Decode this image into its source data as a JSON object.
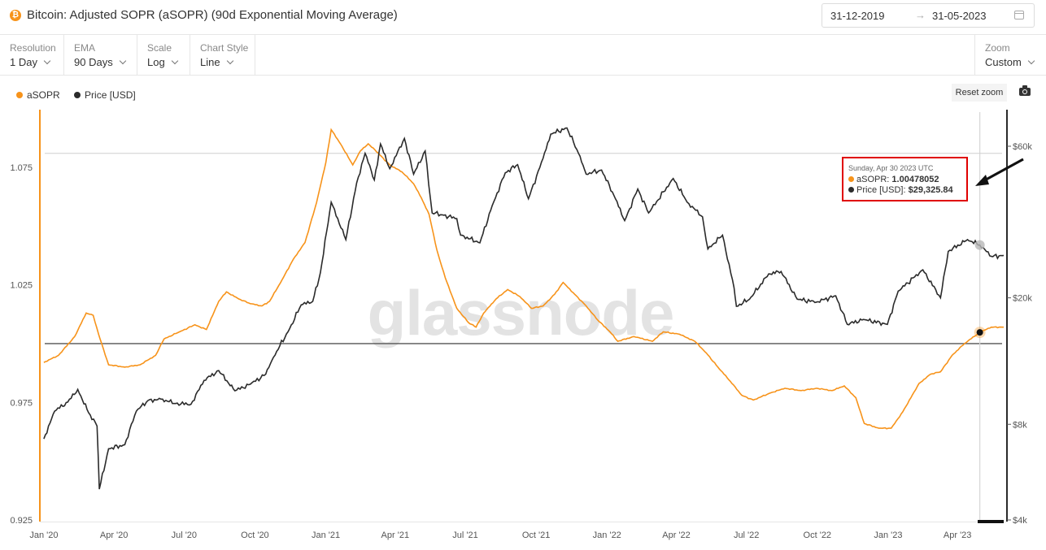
{
  "header": {
    "title": "Bitcoin: Adjusted SOPR (aSOPR) (90d Exponential Moving Average)",
    "coin_symbol": "₿",
    "date_from": "31-12-2019",
    "date_arrow": "→",
    "date_to": "31-05-2023"
  },
  "controls": [
    {
      "label": "Resolution",
      "value": "1 Day"
    },
    {
      "label": "EMA",
      "value": "90 Days"
    },
    {
      "label": "Scale",
      "value": "Log"
    },
    {
      "label": "Chart Style",
      "value": "Line"
    }
  ],
  "zoom": {
    "label": "Zoom",
    "value": "Custom"
  },
  "reset_zoom_label": "Reset zoom",
  "watermark": "glassnode",
  "tooltip": {
    "date": "Sunday, Apr 30 2023 UTC",
    "sopr_name": "aSOPR",
    "sopr_value": "1.00478052",
    "price_name": "Price [USD]",
    "price_value": "$29,325.84"
  },
  "colors": {
    "sopr": "#f7931a",
    "price": "#2b2b2b",
    "highlight": "#e00000"
  },
  "chart_data": {
    "type": "line",
    "title": "Bitcoin: Adjusted SOPR (aSOPR) (90d Exponential Moving Average)",
    "legend": [
      "aSOPR",
      "Price [USD]"
    ],
    "legend_position": "top-left",
    "x_range": [
      "2019-12-31",
      "2023-05-31"
    ],
    "x_ticks": [
      "Jan '20",
      "Apr '20",
      "Jul '20",
      "Oct '20",
      "Jan '21",
      "Apr '21",
      "Jul '21",
      "Oct '21",
      "Jan '22",
      "Apr '22",
      "Jul '22",
      "Oct '22",
      "Jan '23",
      "Apr '23"
    ],
    "y_left": {
      "scale": "linear",
      "range": [
        0.925,
        1.1
      ],
      "ticks": [
        "0.925",
        "0.975",
        "1.025",
        "1.075"
      ]
    },
    "y_right": {
      "scale": "log",
      "range": [
        4000,
        70000
      ],
      "ticks": [
        "$4k",
        "$8k",
        "$20k",
        "$60k"
      ]
    },
    "reference_line": 1.0,
    "grid": false,
    "series": [
      {
        "name": "aSOPR",
        "axis": "left",
        "points": [
          [
            "2020-01-01",
            0.992
          ],
          [
            "2020-01-20",
            0.995
          ],
          [
            "2020-02-10",
            1.003
          ],
          [
            "2020-02-25",
            1.013
          ],
          [
            "2020-03-05",
            1.012
          ],
          [
            "2020-03-12",
            1.004
          ],
          [
            "2020-03-25",
            0.991
          ],
          [
            "2020-04-15",
            0.99
          ],
          [
            "2020-05-05",
            0.991
          ],
          [
            "2020-05-25",
            0.995
          ],
          [
            "2020-06-05",
            1.002
          ],
          [
            "2020-06-25",
            1.005
          ],
          [
            "2020-07-15",
            1.008
          ],
          [
            "2020-07-30",
            1.006
          ],
          [
            "2020-08-15",
            1.018
          ],
          [
            "2020-08-25",
            1.022
          ],
          [
            "2020-09-10",
            1.019
          ],
          [
            "2020-09-25",
            1.017
          ],
          [
            "2020-10-10",
            1.016
          ],
          [
            "2020-10-20",
            1.018
          ],
          [
            "2020-11-05",
            1.027
          ],
          [
            "2020-11-20",
            1.036
          ],
          [
            "2020-12-05",
            1.043
          ],
          [
            "2020-12-20",
            1.06
          ],
          [
            "2021-01-01",
            1.077
          ],
          [
            "2021-01-08",
            1.091
          ],
          [
            "2021-01-20",
            1.085
          ],
          [
            "2021-02-05",
            1.076
          ],
          [
            "2021-02-15",
            1.082
          ],
          [
            "2021-02-25",
            1.085
          ],
          [
            "2021-03-10",
            1.081
          ],
          [
            "2021-03-25",
            1.076
          ],
          [
            "2021-04-10",
            1.073
          ],
          [
            "2021-04-25",
            1.068
          ],
          [
            "2021-05-05",
            1.062
          ],
          [
            "2021-05-15",
            1.055
          ],
          [
            "2021-05-25",
            1.04
          ],
          [
            "2021-06-05",
            1.028
          ],
          [
            "2021-06-20",
            1.015
          ],
          [
            "2021-07-05",
            1.009
          ],
          [
            "2021-07-15",
            1.007
          ],
          [
            "2021-07-25",
            1.013
          ],
          [
            "2021-08-10",
            1.019
          ],
          [
            "2021-08-25",
            1.023
          ],
          [
            "2021-09-10",
            1.02
          ],
          [
            "2021-09-25",
            1.015
          ],
          [
            "2021-10-10",
            1.016
          ],
          [
            "2021-10-25",
            1.021
          ],
          [
            "2021-11-05",
            1.026
          ],
          [
            "2021-11-20",
            1.021
          ],
          [
            "2021-12-05",
            1.016
          ],
          [
            "2021-12-20",
            1.01
          ],
          [
            "2022-01-05",
            1.005
          ],
          [
            "2022-01-15",
            1.001
          ],
          [
            "2022-02-05",
            1.003
          ],
          [
            "2022-03-01",
            1.001
          ],
          [
            "2022-03-15",
            1.005
          ],
          [
            "2022-04-05",
            1.004
          ],
          [
            "2022-04-25",
            1.001
          ],
          [
            "2022-05-10",
            0.996
          ],
          [
            "2022-05-25",
            0.99
          ],
          [
            "2022-06-10",
            0.984
          ],
          [
            "2022-06-25",
            0.978
          ],
          [
            "2022-07-10",
            0.976
          ],
          [
            "2022-08-01",
            0.979
          ],
          [
            "2022-08-20",
            0.981
          ],
          [
            "2022-09-10",
            0.98
          ],
          [
            "2022-09-30",
            0.981
          ],
          [
            "2022-10-20",
            0.98
          ],
          [
            "2022-11-05",
            0.982
          ],
          [
            "2022-11-20",
            0.977
          ],
          [
            "2022-12-01",
            0.966
          ],
          [
            "2022-12-20",
            0.964
          ],
          [
            "2023-01-05",
            0.964
          ],
          [
            "2023-01-20",
            0.971
          ],
          [
            "2023-02-10",
            0.983
          ],
          [
            "2023-02-25",
            0.987
          ],
          [
            "2023-03-10",
            0.988
          ],
          [
            "2023-03-25",
            0.995
          ],
          [
            "2023-04-10",
            1.0
          ],
          [
            "2023-04-30",
            1.0048
          ],
          [
            "2023-05-15",
            1.007
          ],
          [
            "2023-05-31",
            1.007
          ]
        ]
      },
      {
        "name": "Price [USD]",
        "axis": "right",
        "points": [
          [
            "2020-01-01",
            7200
          ],
          [
            "2020-01-15",
            8800
          ],
          [
            "2020-02-01",
            9400
          ],
          [
            "2020-02-14",
            10300
          ],
          [
            "2020-02-28",
            8700
          ],
          [
            "2020-03-10",
            7900
          ],
          [
            "2020-03-13",
            5000
          ],
          [
            "2020-03-25",
            6700
          ],
          [
            "2020-04-15",
            6900
          ],
          [
            "2020-04-30",
            8800
          ],
          [
            "2020-05-15",
            9500
          ],
          [
            "2020-06-01",
            9600
          ],
          [
            "2020-06-20",
            9300
          ],
          [
            "2020-07-10",
            9250
          ],
          [
            "2020-07-27",
            11000
          ],
          [
            "2020-08-15",
            11800
          ],
          [
            "2020-09-05",
            10200
          ],
          [
            "2020-09-25",
            10700
          ],
          [
            "2020-10-15",
            11500
          ],
          [
            "2020-10-25",
            13000
          ],
          [
            "2020-11-15",
            16000
          ],
          [
            "2020-11-30",
            19000
          ],
          [
            "2020-12-15",
            19500
          ],
          [
            "2020-12-25",
            24000
          ],
          [
            "2021-01-08",
            40000
          ],
          [
            "2021-01-27",
            30500
          ],
          [
            "2021-02-10",
            46000
          ],
          [
            "2021-02-21",
            57000
          ],
          [
            "2021-03-05",
            47000
          ],
          [
            "2021-03-13",
            61000
          ],
          [
            "2021-03-25",
            51000
          ],
          [
            "2021-04-13",
            63500
          ],
          [
            "2021-04-25",
            49000
          ],
          [
            "2021-05-10",
            58000
          ],
          [
            "2021-05-19",
            37000
          ],
          [
            "2021-06-01",
            36500
          ],
          [
            "2021-06-20",
            35500
          ],
          [
            "2021-06-25",
            31500
          ],
          [
            "2021-07-20",
            29800
          ],
          [
            "2021-08-05",
            39000
          ],
          [
            "2021-08-22",
            49500
          ],
          [
            "2021-09-07",
            52500
          ],
          [
            "2021-09-21",
            41000
          ],
          [
            "2021-10-10",
            55000
          ],
          [
            "2021-10-20",
            65500
          ],
          [
            "2021-11-10",
            68500
          ],
          [
            "2021-11-25",
            57000
          ],
          [
            "2021-12-05",
            49000
          ],
          [
            "2021-12-25",
            50500
          ],
          [
            "2022-01-10",
            42000
          ],
          [
            "2022-01-24",
            35000
          ],
          [
            "2022-02-10",
            44000
          ],
          [
            "2022-02-24",
            37000
          ],
          [
            "2022-03-28",
            47500
          ],
          [
            "2022-04-15",
            40000
          ],
          [
            "2022-05-05",
            36000
          ],
          [
            "2022-05-12",
            28500
          ],
          [
            "2022-05-31",
            31500
          ],
          [
            "2022-06-15",
            21500
          ],
          [
            "2022-06-18",
            18800
          ],
          [
            "2022-07-05",
            19800
          ],
          [
            "2022-07-30",
            23800
          ],
          [
            "2022-08-15",
            24200
          ],
          [
            "2022-09-05",
            19800
          ],
          [
            "2022-09-30",
            19400
          ],
          [
            "2022-10-25",
            20300
          ],
          [
            "2022-11-09",
            16500
          ],
          [
            "2022-11-30",
            17100
          ],
          [
            "2022-12-31",
            16500
          ],
          [
            "2023-01-14",
            21000
          ],
          [
            "2023-02-15",
            24500
          ],
          [
            "2023-03-10",
            20000
          ],
          [
            "2023-03-20",
            28000
          ],
          [
            "2023-04-14",
            30500
          ],
          [
            "2023-04-30",
            29326
          ],
          [
            "2023-05-15",
            27000
          ],
          [
            "2023-05-31",
            27200
          ]
        ]
      }
    ],
    "highlight_point": {
      "date": "2023-04-30",
      "aSOPR": 1.00478052,
      "price_usd": 29325.84
    }
  }
}
